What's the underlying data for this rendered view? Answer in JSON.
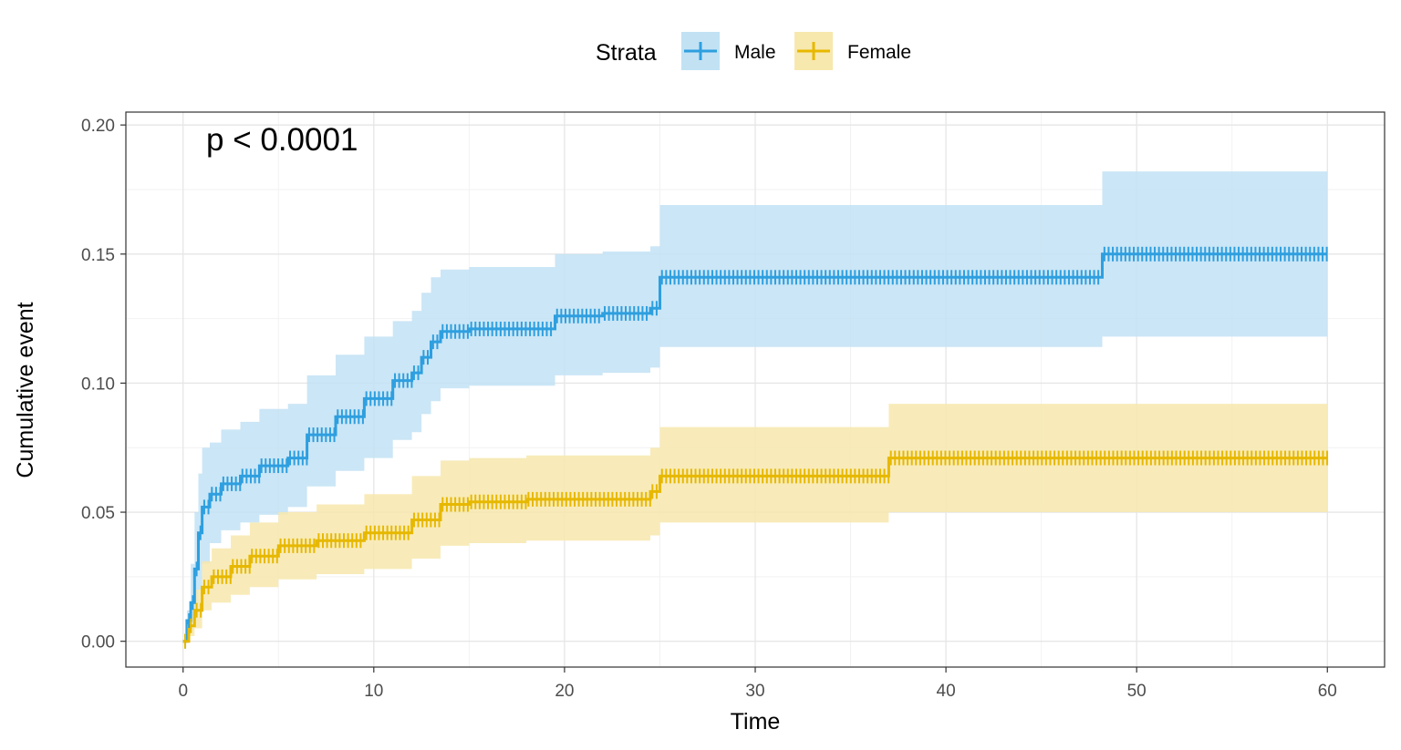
{
  "chart_data": {
    "type": "line",
    "chart_style": "step",
    "title": "",
    "xlabel": "Time",
    "ylabel": "Cumulative event",
    "xlim": [
      -3,
      63
    ],
    "ylim": [
      -0.01,
      0.205
    ],
    "x_ticks": [
      0,
      10,
      20,
      30,
      40,
      50,
      60
    ],
    "y_ticks": [
      0.0,
      0.05,
      0.1,
      0.15,
      0.2
    ],
    "x_tick_labels": [
      "0",
      "10",
      "20",
      "30",
      "40",
      "50",
      "60"
    ],
    "y_tick_labels": [
      "0.00",
      "0.05",
      "0.10",
      "0.15",
      "0.20"
    ],
    "grid": true,
    "legend": {
      "title": "Strata",
      "position": "top"
    },
    "annotation": "p < 0.0001",
    "series": [
      {
        "name": "Male",
        "color": "#2E9FDF",
        "x": [
          0,
          0.2,
          0.4,
          0.6,
          0.8,
          1.0,
          1.4,
          2.0,
          3.0,
          4.0,
          5.5,
          6.5,
          8.0,
          9.5,
          11.0,
          12.0,
          12.5,
          13.0,
          13.5,
          15.0,
          19.5,
          22.0,
          24.5,
          25.0,
          48.2,
          60.0
        ],
        "y": [
          0,
          0.008,
          0.015,
          0.028,
          0.042,
          0.052,
          0.057,
          0.061,
          0.064,
          0.068,
          0.071,
          0.08,
          0.087,
          0.094,
          0.101,
          0.104,
          0.11,
          0.116,
          0.12,
          0.121,
          0.126,
          0.127,
          0.129,
          0.141,
          0.15,
          0.15
        ],
        "ci_upper": [
          0,
          0.012,
          0.03,
          0.05,
          0.065,
          0.075,
          0.077,
          0.082,
          0.085,
          0.09,
          0.092,
          0.103,
          0.111,
          0.118,
          0.124,
          0.128,
          0.135,
          0.141,
          0.144,
          0.145,
          0.15,
          0.151,
          0.153,
          0.169,
          0.182,
          0.182
        ],
        "ci_lower": [
          0,
          0.003,
          0.005,
          0.01,
          0.02,
          0.03,
          0.038,
          0.043,
          0.046,
          0.049,
          0.052,
          0.06,
          0.066,
          0.071,
          0.078,
          0.081,
          0.088,
          0.093,
          0.098,
          0.099,
          0.103,
          0.104,
          0.106,
          0.114,
          0.118,
          0.118
        ]
      },
      {
        "name": "Female",
        "color": "#E7B800",
        "x": [
          0,
          0.3,
          0.6,
          1.0,
          1.5,
          2.5,
          3.5,
          5.0,
          7.0,
          9.5,
          12.0,
          13.5,
          15.0,
          18.0,
          24.5,
          25.0,
          37.0,
          60.0
        ],
        "y": [
          0,
          0.006,
          0.012,
          0.021,
          0.025,
          0.029,
          0.033,
          0.037,
          0.039,
          0.042,
          0.047,
          0.053,
          0.054,
          0.055,
          0.058,
          0.064,
          0.071,
          0.071
        ],
        "ci_upper": [
          0,
          0.01,
          0.02,
          0.031,
          0.036,
          0.041,
          0.046,
          0.05,
          0.053,
          0.057,
          0.064,
          0.07,
          0.071,
          0.072,
          0.075,
          0.083,
          0.092,
          0.092
        ],
        "ci_lower": [
          0,
          0.002,
          0.005,
          0.012,
          0.015,
          0.018,
          0.021,
          0.024,
          0.026,
          0.028,
          0.032,
          0.037,
          0.038,
          0.039,
          0.041,
          0.046,
          0.05,
          0.05
        ]
      }
    ]
  }
}
